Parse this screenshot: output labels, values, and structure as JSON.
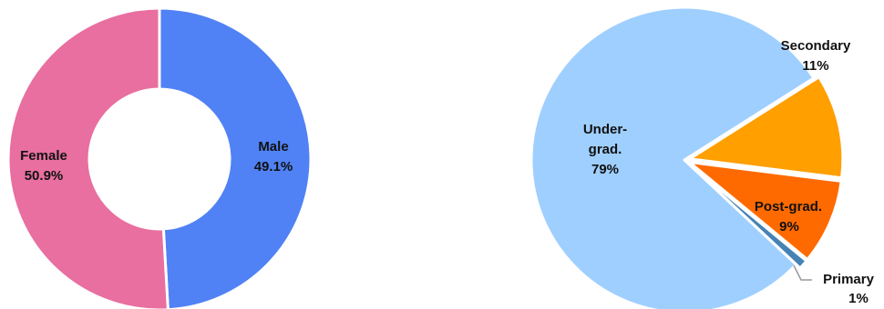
{
  "chart_data": [
    {
      "type": "pie",
      "donut": true,
      "slices": [
        {
          "label": "Male",
          "value_label": "49.1%",
          "value": 49.1,
          "color": "#5082f5"
        },
        {
          "label": "Female",
          "value_label": "50.9%",
          "value": 50.9,
          "color": "#e86fa0"
        }
      ]
    },
    {
      "type": "pie",
      "donut": false,
      "slices": [
        {
          "label": "Secondary",
          "value_label": "11%",
          "value": 11,
          "color": "#ff9f00"
        },
        {
          "label": "Post-grad.",
          "value_label": "9%",
          "value": 9,
          "color": "#ff6a00"
        },
        {
          "label": "Primary",
          "value_label": "1%",
          "value": 1,
          "color": "#4682b4"
        },
        {
          "label": "Under-grad.",
          "label_lines": [
            "Under-",
            "grad."
          ],
          "value_label": "79%",
          "value": 79,
          "color": "#9fcfff"
        }
      ]
    }
  ]
}
